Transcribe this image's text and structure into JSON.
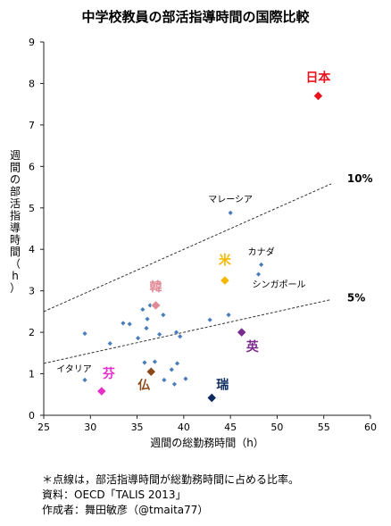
{
  "chart_data": {
    "type": "scatter",
    "title": "中学校教員の部活指導時間の国際比較",
    "xlabel": "週間の総勤務時間（h）",
    "ylabel": "週間の部活指導時間（h）",
    "xlim": [
      25,
      60
    ],
    "ylim": [
      0,
      9
    ],
    "xticks": [
      "25",
      "30",
      "35",
      "40",
      "45",
      "50",
      "55",
      "60"
    ],
    "yticks": [
      "0",
      "1",
      "2",
      "3",
      "4",
      "5",
      "6",
      "7",
      "8",
      "9"
    ],
    "grid": false,
    "points": [
      {
        "x": 29.4,
        "y": 1.97
      },
      {
        "x": 29.4,
        "y": 0.85
      },
      {
        "x": 32.1,
        "y": 1.73
      },
      {
        "x": 33.5,
        "y": 2.22
      },
      {
        "x": 34.2,
        "y": 2.2
      },
      {
        "x": 35.1,
        "y": 1.86
      },
      {
        "x": 35.6,
        "y": 2.55
      },
      {
        "x": 35.8,
        "y": 1.27
      },
      {
        "x": 36.0,
        "y": 2.1
      },
      {
        "x": 36.1,
        "y": 2.32
      },
      {
        "x": 36.4,
        "y": 2.65
      },
      {
        "x": 36.9,
        "y": 1.29
      },
      {
        "x": 37.3,
        "y": 2.65
      },
      {
        "x": 37.4,
        "y": 1.95
      },
      {
        "x": 37.8,
        "y": 2.42
      },
      {
        "x": 37.9,
        "y": 0.85
      },
      {
        "x": 38.7,
        "y": 1.1
      },
      {
        "x": 39.0,
        "y": 0.75
      },
      {
        "x": 39.2,
        "y": 2.0
      },
      {
        "x": 39.3,
        "y": 1.25
      },
      {
        "x": 39.6,
        "y": 1.9
      },
      {
        "x": 40.2,
        "y": 0.88
      },
      {
        "x": 42.8,
        "y": 2.3
      },
      {
        "x": 44.8,
        "y": 2.42
      },
      {
        "x": 45.0,
        "y": 4.88
      },
      {
        "x": 48.0,
        "y": 3.4
      },
      {
        "x": 48.3,
        "y": 3.63
      }
    ],
    "highlighted": [
      {
        "label": "日本",
        "x": 54.4,
        "y": 7.7,
        "color": "#e8141d"
      },
      {
        "label": "米",
        "x": 44.4,
        "y": 3.25,
        "color": "#f5b800"
      },
      {
        "label": "韓",
        "x": 37.0,
        "y": 2.65,
        "color": "#e08a96"
      },
      {
        "label": "英",
        "x": 46.2,
        "y": 2.0,
        "color": "#7b2b8c"
      },
      {
        "label": "仏",
        "x": 36.5,
        "y": 1.05,
        "color": "#8b4a1a"
      },
      {
        "label": "芬",
        "x": 31.2,
        "y": 0.58,
        "color": "#e42fc8"
      },
      {
        "label": "瑞",
        "x": 43.0,
        "y": 0.42,
        "color": "#0d2b5e"
      }
    ],
    "point_labels": [
      {
        "text": "マレーシア",
        "x": 45.0,
        "y": 4.88
      },
      {
        "text": "カナダ",
        "x": 48.3,
        "y": 3.63
      },
      {
        "text": "シンガポール",
        "x": 48.0,
        "y": 3.4
      },
      {
        "text": "イタリア",
        "x": 29.4,
        "y": 0.85
      }
    ],
    "reference_lines": [
      {
        "label": "10%",
        "ratio": 0.1
      },
      {
        "label": "5%",
        "ratio": 0.05
      }
    ],
    "marker_color": "#4a7ebb"
  },
  "footnotes": {
    "note": "＊点線は，部活指導時間が総勤務時間に占める比率。",
    "source": "資料：OECD「TALIS 2013」",
    "author": "作成者：舞田敏彦（@tmaita77）"
  }
}
